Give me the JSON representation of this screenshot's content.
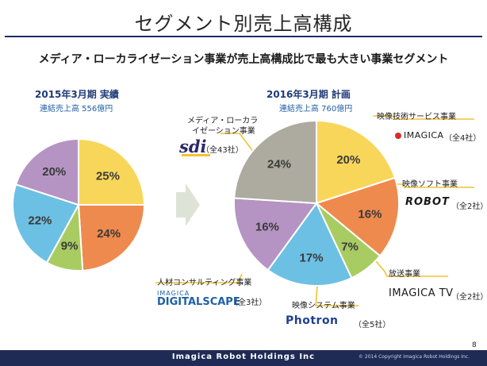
{
  "title": "セグメント別売上高構成",
  "subtitle": "メディア・ローカライゼーション事業が売上高構成比で最も大きい事業セグメント",
  "page_number": "8",
  "footer": {
    "brand": "Imagica Robot Holdings Inc",
    "copyright": "© 2014 Copyright Imagica Robot Holdings Inc."
  },
  "chart_data": [
    {
      "type": "pie",
      "title": "2015年3月期 実績",
      "subtitle": "連結売上高 556億円",
      "categories": [
        "映像技術サービス事業",
        "映像ソフト事業",
        "放送事業",
        "映像システム事業",
        "メディア・ローカライゼーション事業"
      ],
      "values": [
        25,
        24,
        9,
        22,
        20
      ],
      "labels": [
        "25%",
        "24%",
        "9%",
        "22%",
        "20%"
      ],
      "colors": [
        "#f8d65a",
        "#ee8a4d",
        "#a9cc62",
        "#6cc0e4",
        "#b594c3"
      ]
    },
    {
      "type": "pie",
      "title": "2016年3月期 計画",
      "subtitle": "連結売上高 760億円",
      "categories": [
        "映像技術サービス事業",
        "映像ソフト事業",
        "放送事業",
        "映像システム事業",
        "人材コンサルティング事業",
        "メディア・ローカライゼーション事業"
      ],
      "values": [
        20,
        16,
        7,
        17,
        16,
        24
      ],
      "labels": [
        "20%",
        "16%",
        "7%",
        "17%",
        "16%",
        "24%"
      ],
      "colors": [
        "#f8d65a",
        "#ee8a4d",
        "#a9cc62",
        "#6cc0e4",
        "#b594c3",
        "#adaa9f"
      ]
    }
  ],
  "callouts": {
    "media_loc": {
      "name_line1": "メディア・ローカラ",
      "name_line2": "イゼーション事業",
      "logo": "sdi",
      "count": "（全43社）"
    },
    "tech_service": {
      "name": "映像技術サービス事業",
      "logo": "IMAGICA",
      "count": "（全4社）"
    },
    "soft": {
      "name": "映像ソフト事業",
      "logo": "ROBOT",
      "count": "（全2社）"
    },
    "broadcast": {
      "name": "放送事業",
      "logo": "IMAGICA TV",
      "count": "（全2社）"
    },
    "system": {
      "name": "映像システム事業",
      "logo": "Photron",
      "count": "（全5社）"
    },
    "hr": {
      "name": "人材コンサルティング事業",
      "logo_line1": "IMAGICA",
      "logo_line2": "DIGITALSCAPE",
      "count": "（全3社）"
    }
  },
  "arrow_color": "#dde4d7",
  "callout_line_color": "#f2c230"
}
